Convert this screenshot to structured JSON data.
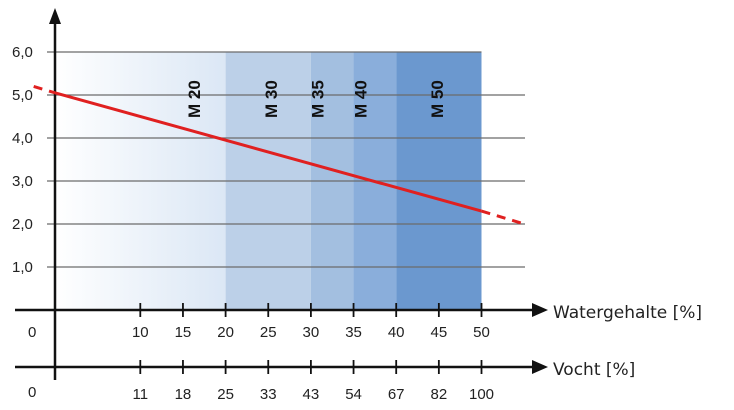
{
  "chart_data": {
    "type": "line",
    "title": "",
    "y_axis": {
      "ticks": [
        "1,0",
        "2,0",
        "3,0",
        "4,0",
        "5,0",
        "6,0"
      ],
      "tick_values": [
        1,
        2,
        3,
        4,
        5,
        6
      ],
      "ylim": [
        0,
        6
      ],
      "grid": true
    },
    "x_axis_primary": {
      "label": "Watergehalte [%]",
      "zero_label": "0",
      "ticks": [
        "10",
        "15",
        "20",
        "25",
        "30",
        "35",
        "40",
        "45",
        "50"
      ],
      "tick_values": [
        10,
        15,
        20,
        25,
        30,
        35,
        40,
        45,
        50
      ]
    },
    "x_axis_secondary": {
      "label": "Vocht [%]",
      "zero_label": "0",
      "ticks": [
        "11",
        "18",
        "25",
        "33",
        "43",
        "54",
        "67",
        "82",
        "100"
      ],
      "tick_values": [
        11,
        18,
        25,
        33,
        43,
        54,
        67,
        82,
        100
      ]
    },
    "zones": [
      {
        "label": "M 20",
        "from": 0,
        "to": 20,
        "color": "#eef4fb"
      },
      {
        "label": "M 30",
        "from": 20,
        "to": 30,
        "color": "#bcd0e8"
      },
      {
        "label": "M 35",
        "from": 30,
        "to": 35,
        "color": "#a3bfe0"
      },
      {
        "label": "M 40",
        "from": 35,
        "to": 40,
        "color": "#8aaedb"
      },
      {
        "label": "M 50",
        "from": 40,
        "to": 50,
        "color": "#6b98cf"
      }
    ],
    "series": [
      {
        "color": "#e02020",
        "solid": {
          "x": [
            0,
            50
          ],
          "y": [
            5.05,
            2.3
          ]
        },
        "dashed_start": {
          "x": [
            -2.5,
            0
          ],
          "y": [
            5.2,
            5.05
          ]
        },
        "dashed_end": {
          "x": [
            50,
            55
          ],
          "y": [
            2.3,
            2.0
          ]
        }
      }
    ]
  }
}
